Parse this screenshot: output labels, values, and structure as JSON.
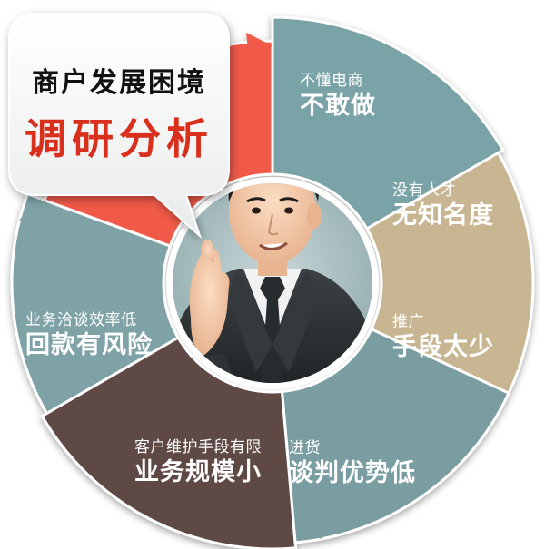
{
  "bubble": {
    "line1": "商户发展困境",
    "line2": "调研分析"
  },
  "segments": [
    {
      "id": "ecommerce",
      "small": "不懂电商",
      "big": "不敢做",
      "color": "#7aa3a7"
    },
    {
      "id": "talent",
      "small": "没有人才",
      "big": "无知名度",
      "color": "#c8b591"
    },
    {
      "id": "promotion",
      "small": "推广",
      "big": "手段太少",
      "color": "#7a9da2"
    },
    {
      "id": "purchase",
      "small": "进货",
      "big": "谈判优势低",
      "color": "#5e4a45"
    },
    {
      "id": "scale",
      "small": "客户维护手段有限",
      "big": "业务规模小",
      "color": "#7ea2a6"
    },
    {
      "id": "payment",
      "small": "业务洽谈效率低",
      "big": "回款有风险",
      "color": "#f15a4a"
    }
  ],
  "colors": {
    "bubble_title": "#111111",
    "bubble_highlight": "#d9301e",
    "suit": "#2c3033",
    "tie": "#252a2c",
    "skin": "#f4c9a8"
  }
}
